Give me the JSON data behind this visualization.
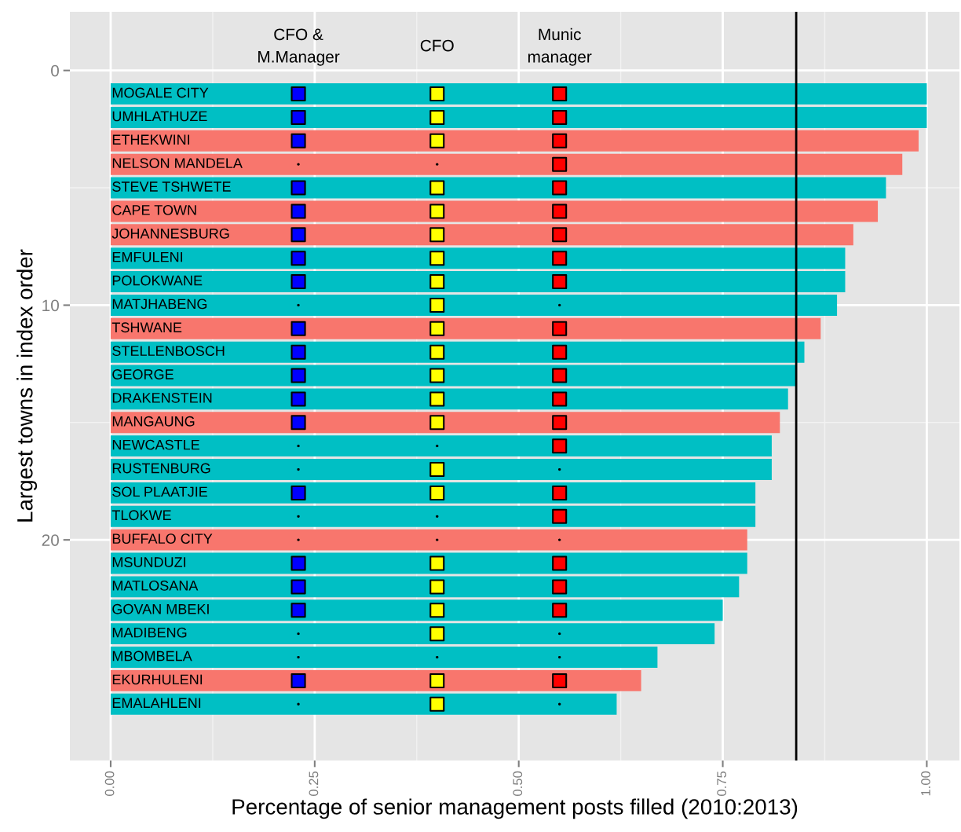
{
  "chart_data": {
    "type": "bar",
    "orientation": "horizontal",
    "xlabel": "Percentage of senior management posts filled (2010:2013)",
    "ylabel": "Largest towns in index order",
    "x": [
      1,
      2,
      3,
      4,
      5,
      6,
      7,
      8,
      9,
      10,
      11,
      12,
      13,
      14,
      15,
      16,
      17,
      18,
      19,
      20,
      21,
      22,
      23,
      24,
      25,
      26,
      27
    ],
    "annotations": [
      "MOGALE CITY",
      "UMHLATHUZE",
      "ETHEKWINI",
      "NELSON MANDELA",
      "STEVE TSHWETE",
      "CAPE TOWN",
      "JOHANNESBURG",
      "EMFULENI",
      "POLOKWANE",
      "MATJHABENG",
      "TSHWANE",
      "STELLENBOSCH",
      "GEORGE",
      "DRAKENSTEIN",
      "MANGAUNG",
      "NEWCASTLE",
      "RUSTENBURG",
      "SOL PLAATJIE",
      "TLOKWE",
      "BUFFALO CITY",
      "MSUNDUZI",
      "MATLOSANA",
      "GOVAN MBEKI",
      "MADIBENG",
      "MBOMBELA",
      "EKURHULENI",
      "EMALAHLENI"
    ],
    "series": [
      {
        "values": [
          1.0,
          1.0,
          0.99,
          0.97,
          0.95,
          0.94,
          0.91,
          0.9,
          0.9,
          0.89,
          0.87,
          0.85,
          0.84,
          0.83,
          0.82,
          0.81,
          0.81,
          0.79,
          0.79,
          0.78,
          0.78,
          0.77,
          0.75,
          0.74,
          0.67,
          0.65,
          0.62
        ],
        "colors": [
          "#00bfc4",
          "#00bfc4",
          "#f8766d",
          "#f8766d",
          "#00bfc4",
          "#f8766d",
          "#f8766d",
          "#00bfc4",
          "#00bfc4",
          "#00bfc4",
          "#f8766d",
          "#00bfc4",
          "#00bfc4",
          "#00bfc4",
          "#f8766d",
          "#00bfc4",
          "#00bfc4",
          "#00bfc4",
          "#00bfc4",
          "#f8766d",
          "#00bfc4",
          "#00bfc4",
          "#00bfc4",
          "#00bfc4",
          "#00bfc4",
          "#f8766d",
          "#00bfc4"
        ]
      },
      {
        "type": "scatter",
        "name": "CFO &\nM.Manager",
        "color": "#0000ff",
        "marker": "square",
        "values": [
          0.23,
          0.23,
          0.23,
          null,
          0.23,
          0.23,
          0.23,
          0.23,
          0.23,
          null,
          0.23,
          0.23,
          0.23,
          0.23,
          0.23,
          null,
          null,
          0.23,
          null,
          null,
          0.23,
          0.23,
          0.23,
          null,
          null,
          0.23,
          null
        ]
      },
      {
        "type": "scatter",
        "name": "CFO",
        "color": "#ffff00",
        "marker": "square",
        "values": [
          0.4,
          0.4,
          0.4,
          null,
          0.4,
          0.4,
          0.4,
          0.4,
          0.4,
          0.4,
          0.4,
          0.4,
          0.4,
          0.4,
          0.4,
          null,
          0.4,
          0.4,
          null,
          null,
          0.4,
          0.4,
          0.4,
          0.4,
          null,
          0.4,
          0.4
        ]
      },
      {
        "type": "scatter",
        "name": "Munic\nmanager",
        "color": "#ff0000",
        "marker": "square",
        "values": [
          0.55,
          0.55,
          0.55,
          0.55,
          0.55,
          0.55,
          0.55,
          0.55,
          0.55,
          null,
          0.55,
          0.55,
          0.55,
          0.55,
          0.55,
          0.55,
          null,
          0.55,
          0.55,
          null,
          0.55,
          0.55,
          0.55,
          null,
          null,
          0.55,
          null
        ]
      },
      {
        "type": "scatter",
        "color": "#000000",
        "marker": "circle",
        "values": [
          null,
          null,
          null,
          0.23,
          null,
          null,
          null,
          null,
          null,
          0.23,
          null,
          null,
          null,
          null,
          null,
          0.23,
          0.23,
          null,
          0.23,
          0.23,
          null,
          null,
          null,
          0.23,
          0.23,
          null,
          0.23
        ]
      },
      {
        "type": "scatter",
        "color": "#000000",
        "marker": "circle",
        "values": [
          null,
          null,
          null,
          0.4,
          null,
          null,
          null,
          null,
          null,
          null,
          null,
          null,
          null,
          null,
          null,
          0.4,
          null,
          null,
          0.4,
          0.4,
          null,
          null,
          null,
          null,
          0.4,
          null,
          null
        ]
      },
      {
        "type": "scatter",
        "color": "#000000",
        "marker": "circle",
        "values": [
          null,
          null,
          null,
          null,
          null,
          null,
          null,
          null,
          null,
          0.55,
          null,
          null,
          null,
          null,
          null,
          null,
          0.55,
          null,
          null,
          0.55,
          null,
          null,
          null,
          0.55,
          0.55,
          null,
          0.55
        ]
      }
    ],
    "xlim": [
      -0.05,
      1.04
    ],
    "xticks": [
      {
        "value": 0,
        "label": "0.00"
      },
      {
        "value": 0.25,
        "label": "0.25"
      },
      {
        "value": 0.5,
        "label": "0.50"
      },
      {
        "value": 0.75,
        "label": "0.75"
      },
      {
        "value": 1,
        "label": "1.00"
      }
    ],
    "ylim": [
      29.4,
      -2.5
    ],
    "yticks": [
      0,
      10,
      20
    ],
    "ref_lines": [
      {
        "axis": "x",
        "value": 0.84,
        "color": "#000000"
      }
    ],
    "grid": true,
    "legend": false
  }
}
